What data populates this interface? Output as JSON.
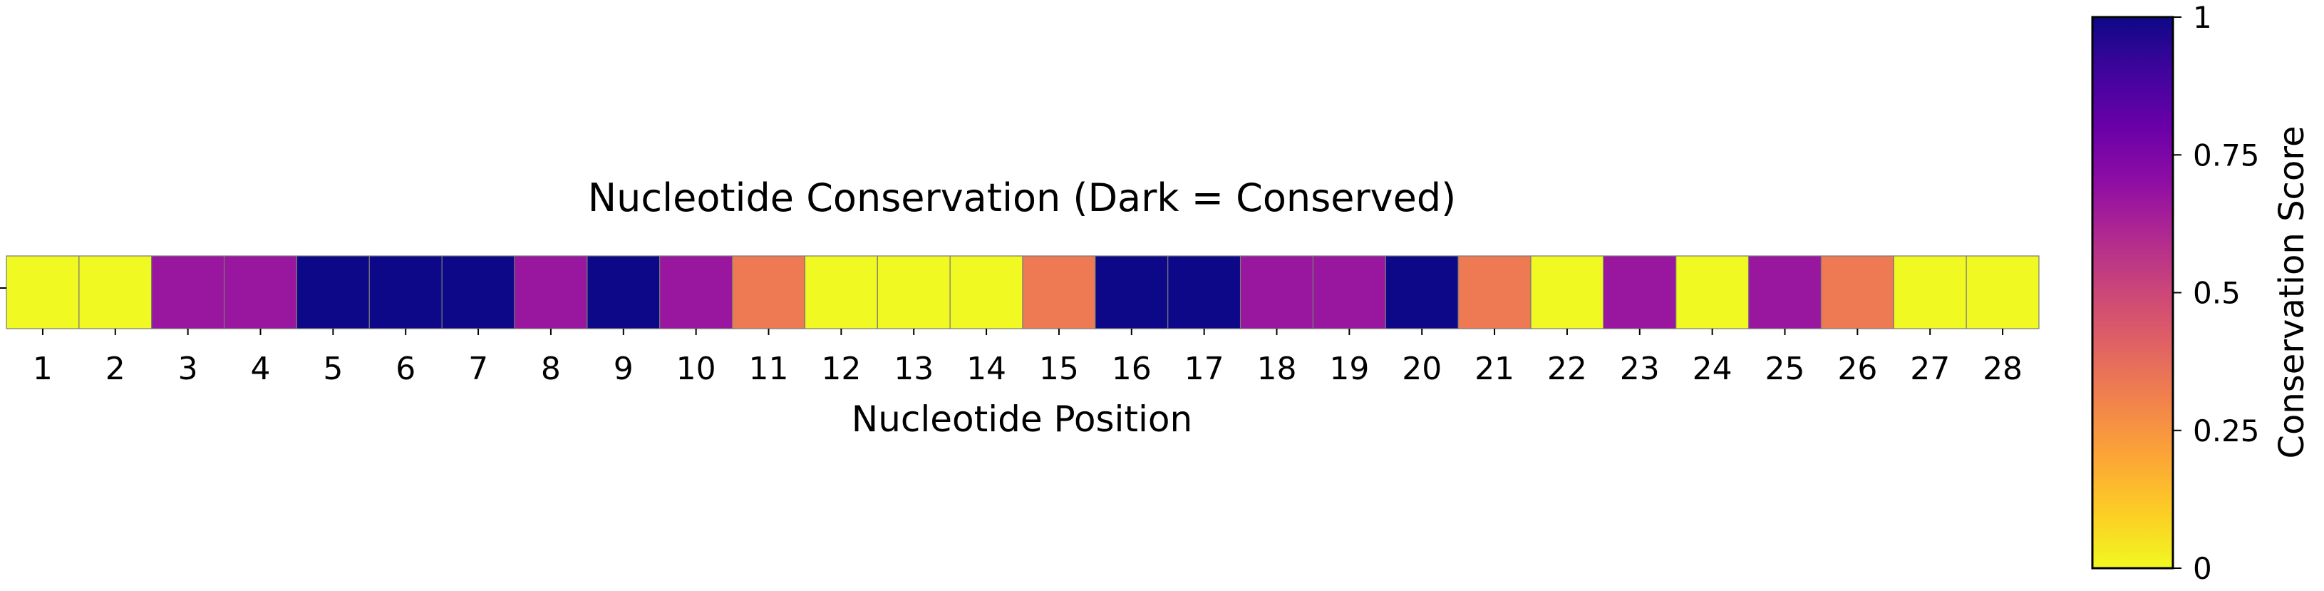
{
  "chart_data": {
    "type": "heatmap",
    "title": "Nucleotide Conservation (Dark = Conserved)",
    "xlabel": "Nucleotide Position",
    "ylabel": "",
    "categories": [
      "1",
      "2",
      "3",
      "4",
      "5",
      "6",
      "7",
      "8",
      "9",
      "10",
      "11",
      "12",
      "13",
      "14",
      "15",
      "16",
      "17",
      "18",
      "19",
      "20",
      "21",
      "22",
      "23",
      "24",
      "25",
      "26",
      "27",
      "28"
    ],
    "values": [
      0,
      0,
      0.67,
      0.67,
      1,
      1,
      1,
      0.67,
      1,
      0.67,
      0.33,
      0,
      0,
      0,
      0.33,
      1,
      1,
      0.67,
      0.67,
      1,
      0.33,
      0,
      0.67,
      0,
      0.67,
      0.33,
      0,
      0
    ],
    "colormap": "plasma_r",
    "color_range": [
      0,
      1
    ],
    "colorbar": {
      "label": "Conservation Score",
      "ticks": [
        "0",
        "0.25",
        "0.5",
        "0.75",
        "1"
      ]
    },
    "grid": false,
    "legend": "none"
  }
}
